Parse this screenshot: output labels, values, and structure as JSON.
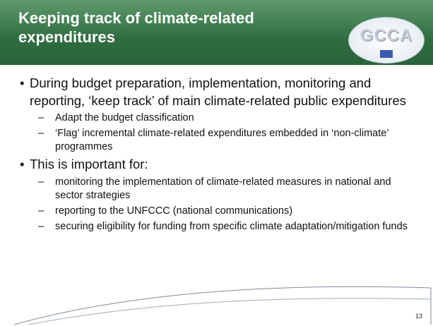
{
  "header": {
    "title": "Keeping track of climate-related expenditures",
    "logo": "GCCA"
  },
  "bullets": [
    {
      "text": "During budget preparation, implementation, monitoring and reporting, ‘keep track’ of main climate-related public expenditures",
      "sub": [
        "Adapt the budget classification",
        "‘Flag’ incremental  climate-related expenditures embedded in ‘non-climate’ programmes"
      ]
    },
    {
      "text": "This is important for:",
      "sub": [
        "monitoring the implementation of climate-related measures in national and sector strategies",
        "reporting to the UNFCCC (national communications)",
        "securing eligibility for funding from specific climate adaptation/mitigation funds"
      ]
    }
  ],
  "page_number": "13"
}
